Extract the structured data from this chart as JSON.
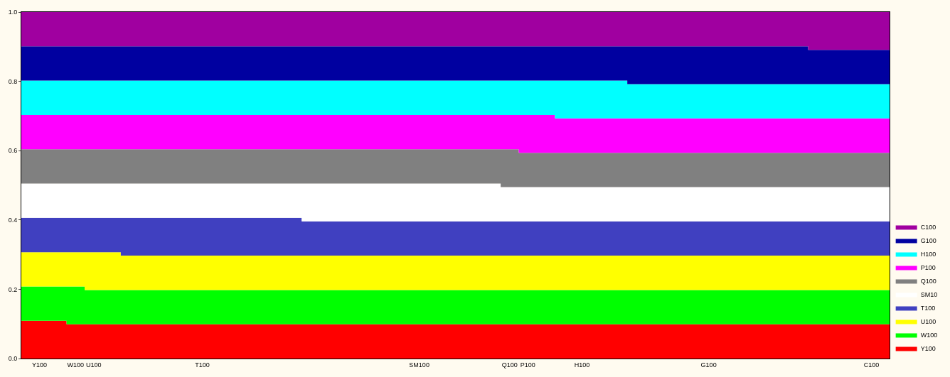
{
  "chart_data": {
    "type": "area",
    "stacked": true,
    "legend": "bottom right",
    "ylim": [
      0,
      1
    ],
    "yticks": [
      {
        "value": 0,
        "label": "0.0"
      },
      {
        "value": 0.2,
        "label": "0.2"
      },
      {
        "value": 0.4,
        "label": "0.4"
      },
      {
        "value": 0.6,
        "label": "0.6"
      },
      {
        "value": 0.8,
        "label": "0.8"
      },
      {
        "value": 1,
        "label": "1.0"
      }
    ],
    "categories": [
      null,
      "Y100",
      null,
      "W100",
      "U100",
      null,
      null,
      null,
      null,
      null,
      "T100",
      null,
      null,
      null,
      null,
      null,
      null,
      null,
      null,
      null,
      null,
      null,
      "SM100",
      null,
      null,
      null,
      null,
      "Q100",
      "P100",
      null,
      null,
      "H100",
      null,
      null,
      null,
      null,
      null,
      null,
      "G100",
      null,
      null,
      null,
      null,
      null,
      null,
      null,
      null,
      "C100",
      null
    ],
    "series": [
      {
        "name": "Y100",
        "color": "#ff0000",
        "values": [
          0.109,
          0.109,
          0.109,
          0.099,
          0.099,
          0.099,
          0.099,
          0.099,
          0.099,
          0.099,
          0.099,
          0.099,
          0.099,
          0.099,
          0.099,
          0.099,
          0.099,
          0.099,
          0.099,
          0.099,
          0.099,
          0.099,
          0.099,
          0.099,
          0.099,
          0.099,
          0.099,
          0.099,
          0.099,
          0.099,
          0.099,
          0.099,
          0.099,
          0.099,
          0.099,
          0.099,
          0.099,
          0.099,
          0.099,
          0.099,
          0.099,
          0.099,
          0.099,
          0.099,
          0.099,
          0.099,
          0.099,
          0.099,
          0.099
        ]
      },
      {
        "name": "W100",
        "color": "#00ff00",
        "values": [
          0.099,
          0.099,
          0.099,
          0.109,
          0.099,
          0.099,
          0.099,
          0.099,
          0.099,
          0.099,
          0.099,
          0.099,
          0.099,
          0.099,
          0.099,
          0.099,
          0.099,
          0.099,
          0.099,
          0.099,
          0.099,
          0.099,
          0.099,
          0.099,
          0.099,
          0.099,
          0.099,
          0.099,
          0.099,
          0.099,
          0.099,
          0.099,
          0.099,
          0.099,
          0.099,
          0.099,
          0.099,
          0.099,
          0.099,
          0.099,
          0.099,
          0.099,
          0.099,
          0.099,
          0.099,
          0.099,
          0.099,
          0.099,
          0.099
        ]
      },
      {
        "name": "U100",
        "color": "#ffff00",
        "values": [
          0.099,
          0.099,
          0.099,
          0.099,
          0.109,
          0.109,
          0.099,
          0.099,
          0.099,
          0.099,
          0.099,
          0.099,
          0.099,
          0.099,
          0.099,
          0.099,
          0.099,
          0.099,
          0.099,
          0.099,
          0.099,
          0.099,
          0.099,
          0.099,
          0.099,
          0.099,
          0.099,
          0.099,
          0.099,
          0.099,
          0.099,
          0.099,
          0.099,
          0.099,
          0.099,
          0.099,
          0.099,
          0.099,
          0.099,
          0.099,
          0.099,
          0.099,
          0.099,
          0.099,
          0.099,
          0.099,
          0.099,
          0.099,
          0.099
        ]
      },
      {
        "name": "T100",
        "color": "#4040c0",
        "values": [
          0.099,
          0.099,
          0.099,
          0.099,
          0.099,
          0.099,
          0.109,
          0.109,
          0.109,
          0.109,
          0.109,
          0.109,
          0.109,
          0.109,
          0.109,
          0.109,
          0.099,
          0.099,
          0.099,
          0.099,
          0.099,
          0.099,
          0.099,
          0.099,
          0.099,
          0.099,
          0.099,
          0.099,
          0.099,
          0.099,
          0.099,
          0.099,
          0.099,
          0.099,
          0.099,
          0.099,
          0.099,
          0.099,
          0.099,
          0.099,
          0.099,
          0.099,
          0.099,
          0.099,
          0.099,
          0.099,
          0.099,
          0.099,
          0.099
        ]
      },
      {
        "name": "SM10",
        "color": "#ffffff",
        "values": [
          0.099,
          0.099,
          0.099,
          0.099,
          0.099,
          0.099,
          0.099,
          0.099,
          0.099,
          0.099,
          0.099,
          0.099,
          0.099,
          0.099,
          0.099,
          0.099,
          0.109,
          0.109,
          0.109,
          0.109,
          0.109,
          0.109,
          0.109,
          0.109,
          0.109,
          0.109,
          0.109,
          0.099,
          0.099,
          0.099,
          0.099,
          0.099,
          0.099,
          0.099,
          0.099,
          0.099,
          0.099,
          0.099,
          0.099,
          0.099,
          0.099,
          0.099,
          0.099,
          0.099,
          0.099,
          0.099,
          0.099,
          0.099,
          0.099
        ]
      },
      {
        "name": "Q100",
        "color": "#808080",
        "values": [
          0.099,
          0.099,
          0.099,
          0.099,
          0.099,
          0.099,
          0.099,
          0.099,
          0.099,
          0.099,
          0.099,
          0.099,
          0.099,
          0.099,
          0.099,
          0.099,
          0.099,
          0.099,
          0.099,
          0.099,
          0.099,
          0.099,
          0.099,
          0.099,
          0.099,
          0.099,
          0.099,
          0.109,
          0.099,
          0.099,
          0.099,
          0.099,
          0.099,
          0.099,
          0.099,
          0.099,
          0.099,
          0.099,
          0.099,
          0.099,
          0.099,
          0.099,
          0.099,
          0.099,
          0.099,
          0.099,
          0.099,
          0.099,
          0.099
        ]
      },
      {
        "name": "P100",
        "color": "#ff00ff",
        "values": [
          0.099,
          0.099,
          0.099,
          0.099,
          0.099,
          0.099,
          0.099,
          0.099,
          0.099,
          0.099,
          0.099,
          0.099,
          0.099,
          0.099,
          0.099,
          0.099,
          0.099,
          0.099,
          0.099,
          0.099,
          0.099,
          0.099,
          0.099,
          0.099,
          0.099,
          0.099,
          0.099,
          0.099,
          0.109,
          0.109,
          0.099,
          0.099,
          0.099,
          0.099,
          0.099,
          0.099,
          0.099,
          0.099,
          0.099,
          0.099,
          0.099,
          0.099,
          0.099,
          0.099,
          0.099,
          0.099,
          0.099,
          0.099,
          0.099
        ]
      },
      {
        "name": "H100",
        "color": "#00ffff",
        "values": [
          0.099,
          0.099,
          0.099,
          0.099,
          0.099,
          0.099,
          0.099,
          0.099,
          0.099,
          0.099,
          0.099,
          0.099,
          0.099,
          0.099,
          0.099,
          0.099,
          0.099,
          0.099,
          0.099,
          0.099,
          0.099,
          0.099,
          0.099,
          0.099,
          0.099,
          0.099,
          0.099,
          0.099,
          0.099,
          0.099,
          0.109,
          0.109,
          0.109,
          0.109,
          0.099,
          0.099,
          0.099,
          0.099,
          0.099,
          0.099,
          0.099,
          0.099,
          0.099,
          0.099,
          0.099,
          0.099,
          0.099,
          0.099,
          0.099
        ]
      },
      {
        "name": "G100",
        "color": "#0000a0",
        "values": [
          0.099,
          0.099,
          0.099,
          0.099,
          0.099,
          0.099,
          0.099,
          0.099,
          0.099,
          0.099,
          0.099,
          0.099,
          0.099,
          0.099,
          0.099,
          0.099,
          0.099,
          0.099,
          0.099,
          0.099,
          0.099,
          0.099,
          0.099,
          0.099,
          0.099,
          0.099,
          0.099,
          0.099,
          0.099,
          0.099,
          0.099,
          0.099,
          0.099,
          0.099,
          0.109,
          0.109,
          0.109,
          0.109,
          0.109,
          0.109,
          0.109,
          0.109,
          0.109,
          0.109,
          0.099,
          0.099,
          0.099,
          0.099,
          0.099
        ]
      },
      {
        "name": "C100",
        "color": "#a000a0",
        "values": [
          0.099,
          0.099,
          0.099,
          0.099,
          0.099,
          0.099,
          0.099,
          0.099,
          0.099,
          0.099,
          0.099,
          0.099,
          0.099,
          0.099,
          0.099,
          0.099,
          0.099,
          0.099,
          0.099,
          0.099,
          0.099,
          0.099,
          0.099,
          0.099,
          0.099,
          0.099,
          0.099,
          0.099,
          0.099,
          0.099,
          0.099,
          0.099,
          0.099,
          0.099,
          0.099,
          0.099,
          0.099,
          0.099,
          0.099,
          0.099,
          0.099,
          0.099,
          0.099,
          0.099,
          0.109,
          0.109,
          0.109,
          0.109,
          0.109
        ]
      }
    ]
  }
}
